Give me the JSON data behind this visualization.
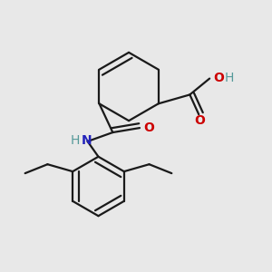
{
  "bg_color": "#e8e8e8",
  "bond_color": "#1a1a1a",
  "o_color": "#cc0000",
  "n_color": "#2222bb",
  "h_color": "#559999",
  "bond_width": 1.6,
  "fig_w": 3.0,
  "fig_h": 3.0,
  "dpi": 100,
  "xlim": [
    0,
    3.0
  ],
  "ylim": [
    0,
    3.0
  ]
}
